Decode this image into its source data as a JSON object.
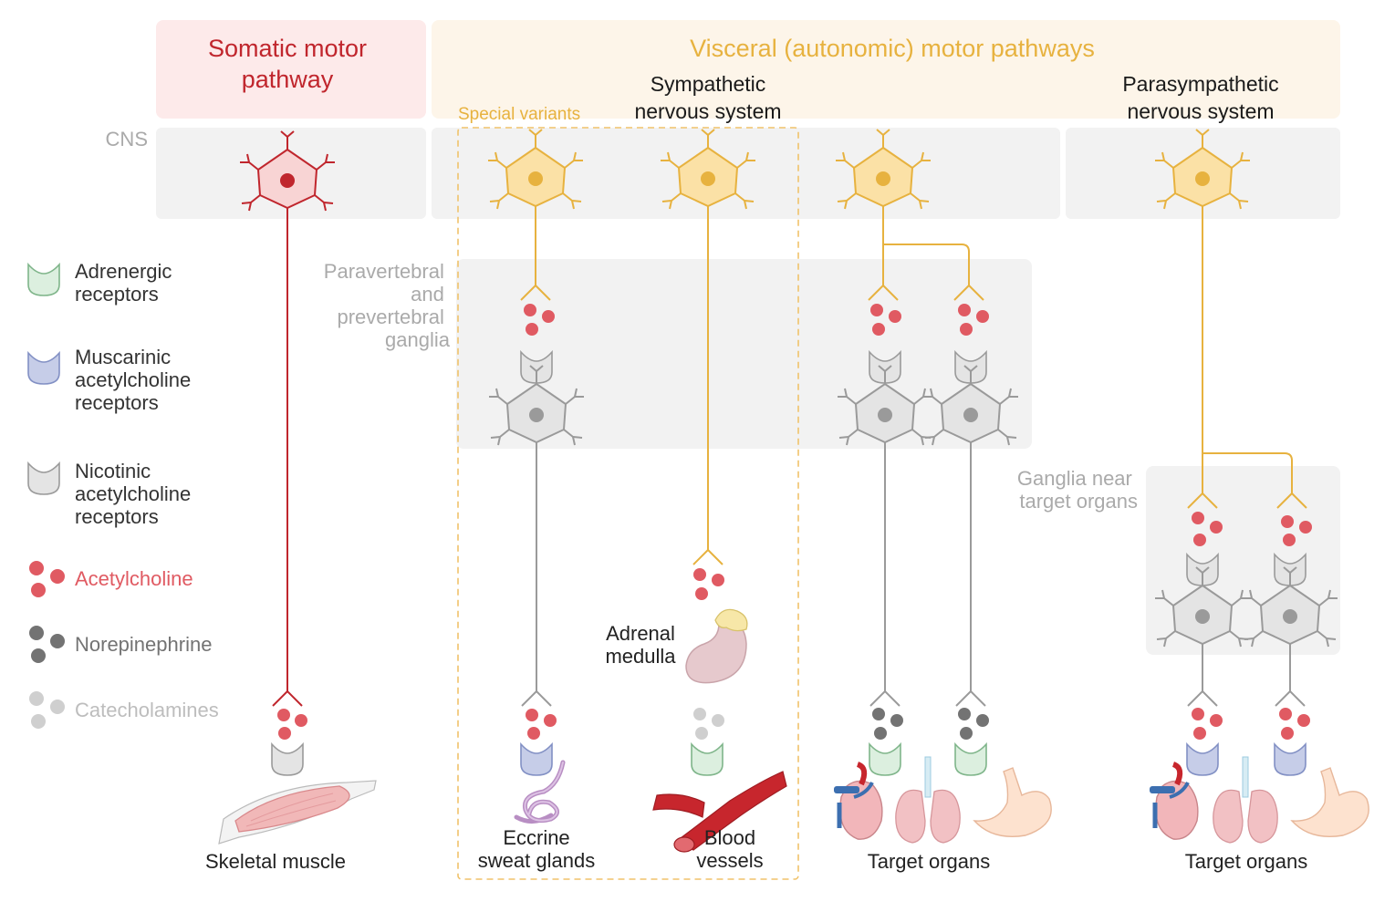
{
  "headers": {
    "somatic": [
      "Somatic motor",
      "pathway"
    ],
    "visceral": "Visceral (autonomic) motor pathways",
    "sympathetic": [
      "Sympathetic",
      "nervous system"
    ],
    "parasympathetic": [
      "Parasympathetic",
      "nervous system"
    ]
  },
  "regions": {
    "cns": "CNS",
    "special_variants": "Special variants",
    "paravertebral": [
      "Paravertebral",
      "and",
      "prevertebral",
      "ganglia"
    ],
    "ganglia_near": [
      "Ganglia near",
      "target organs"
    ]
  },
  "legend": {
    "adrenergic": [
      "Adrenergic",
      "receptors"
    ],
    "muscarinic": [
      "Muscarinic",
      "acetylcholine",
      "receptors"
    ],
    "nicotinic": [
      "Nicotinic",
      "acetylcholine",
      "receptors"
    ],
    "acetylcholine": "Acetylcholine",
    "norepinephrine": "Norepinephrine",
    "catecholamines": "Catecholamines"
  },
  "targets": {
    "skeletal_muscle": "Skeletal muscle",
    "eccrine": [
      "Eccrine",
      "sweat glands"
    ],
    "adrenal": [
      "Adrenal",
      "medulla"
    ],
    "blood_vessels": [
      "Blood",
      "vessels"
    ],
    "target_organs_symp": "Target organs",
    "target_organs_para": "Target organs"
  },
  "colors": {
    "somatic_accent": "#c0262d",
    "visceral_accent": "#e7b23f",
    "acetylcholine": "#e05a62",
    "norepinephrine": "#737373",
    "catecholamines": "#cfcfcf",
    "adrenergic_receptor": "#dcefdf",
    "muscarinic_receptor": "#c6cde8",
    "nicotinic_receptor": "#e4e4e4"
  }
}
